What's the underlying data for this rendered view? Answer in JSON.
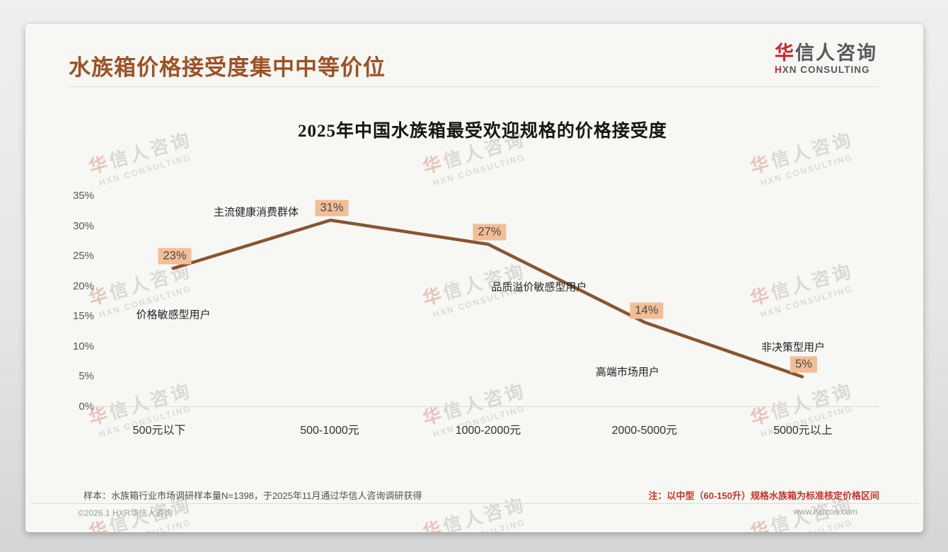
{
  "header": {
    "title": "水族箱价格接受度集中中等价位",
    "logo": {
      "cn_first": "华",
      "cn_rest": "信人咨询",
      "en_first": "H",
      "en_rest": "XN CONSULTING"
    }
  },
  "chart_data": {
    "type": "line",
    "title": "2025年中国水族箱最受欢迎规格的价格接受度",
    "categories": [
      "500元以下",
      "500-1000元",
      "1000-2000元",
      "2000-5000元",
      "5000元以上"
    ],
    "values": [
      23,
      31,
      27,
      14,
      5
    ],
    "data_labels": [
      "23%",
      "31%",
      "27%",
      "14%",
      "5%"
    ],
    "point_annotations": [
      "价格敏感型用户",
      "主流健康消费群体",
      "品质溢价敏感型用户",
      "高端市场用户",
      "非决策型用户"
    ],
    "ytick_labels": [
      "0%",
      "5%",
      "10%",
      "15%",
      "20%",
      "25%",
      "30%",
      "35%"
    ],
    "ylim": [
      0,
      35
    ],
    "xlabel": "",
    "ylabel": "",
    "grid": false,
    "legend_position": "none",
    "line_color": "#875530",
    "data_label_bg": "#F2BE96"
  },
  "notes": {
    "sample": "样本：水族箱行业市场调研样本量N=1398，于2025年11月通过华信人咨询调研获得",
    "method": "注：以中型（60-150升）规格水族箱为标准核定价格区间"
  },
  "footer": {
    "copyright": "©2026.1 HXR华信人咨询",
    "website": "www.hxrcon.com"
  },
  "watermark": {
    "cn_first": "华",
    "cn_rest": "信人咨询",
    "en": "HXN CONSULTING"
  }
}
